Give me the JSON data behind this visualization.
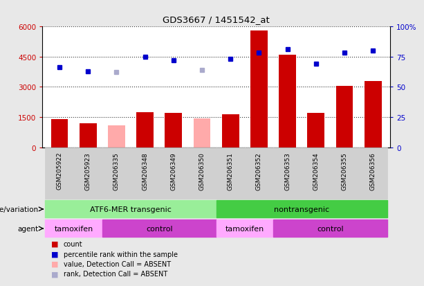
{
  "title": "GDS3667 / 1451542_at",
  "samples": [
    "GSM205922",
    "GSM205923",
    "GSM206335",
    "GSM206348",
    "GSM206349",
    "GSM206350",
    "GSM206351",
    "GSM206352",
    "GSM206353",
    "GSM206354",
    "GSM206355",
    "GSM206356"
  ],
  "bar_values": [
    1400,
    1200,
    1100,
    1750,
    1700,
    1450,
    1650,
    5800,
    4600,
    1700,
    3050,
    3300
  ],
  "bar_absent": [
    false,
    false,
    true,
    false,
    false,
    true,
    false,
    false,
    false,
    false,
    false,
    false
  ],
  "rank_values": [
    66,
    63,
    62,
    75,
    72,
    64,
    73,
    78,
    81,
    69,
    78,
    80
  ],
  "rank_absent": [
    false,
    false,
    true,
    false,
    false,
    true,
    false,
    false,
    false,
    false,
    false,
    false
  ],
  "ylim_left": [
    0,
    6000
  ],
  "ylim_right": [
    0,
    100
  ],
  "yticks_left": [
    0,
    1500,
    3000,
    4500,
    6000
  ],
  "ytick_labels_left": [
    "0",
    "1500",
    "3000",
    "4500",
    "6000"
  ],
  "ytick_labels_right": [
    "0",
    "25",
    "50",
    "75",
    "100%"
  ],
  "bar_color_present": "#cc0000",
  "bar_color_absent": "#ffaaaa",
  "rank_color_present": "#0000cc",
  "rank_color_absent": "#aaaacc",
  "bg_color": "#e8e8e8",
  "plot_bg": "#ffffff",
  "cell_bg": "#d0d0d0",
  "group1_label": "ATF6-MER transgenic",
  "group2_label": "nontransgenic",
  "group1_color": "#99ee99",
  "group2_color": "#44cc44",
  "subgroup_labels": [
    "tamoxifen",
    "control",
    "tamoxifen",
    "control"
  ],
  "subgroup_tamoxifen_color": "#ffaaff",
  "subgroup_control_color": "#cc44cc",
  "genotype_label": "genotype/variation",
  "agent_label": "agent",
  "legend_items": [
    {
      "label": "count",
      "color": "#cc0000"
    },
    {
      "label": "percentile rank within the sample",
      "color": "#0000cc"
    },
    {
      "label": "value, Detection Call = ABSENT",
      "color": "#ffaaaa"
    },
    {
      "label": "rank, Detection Call = ABSENT",
      "color": "#aaaacc"
    }
  ]
}
